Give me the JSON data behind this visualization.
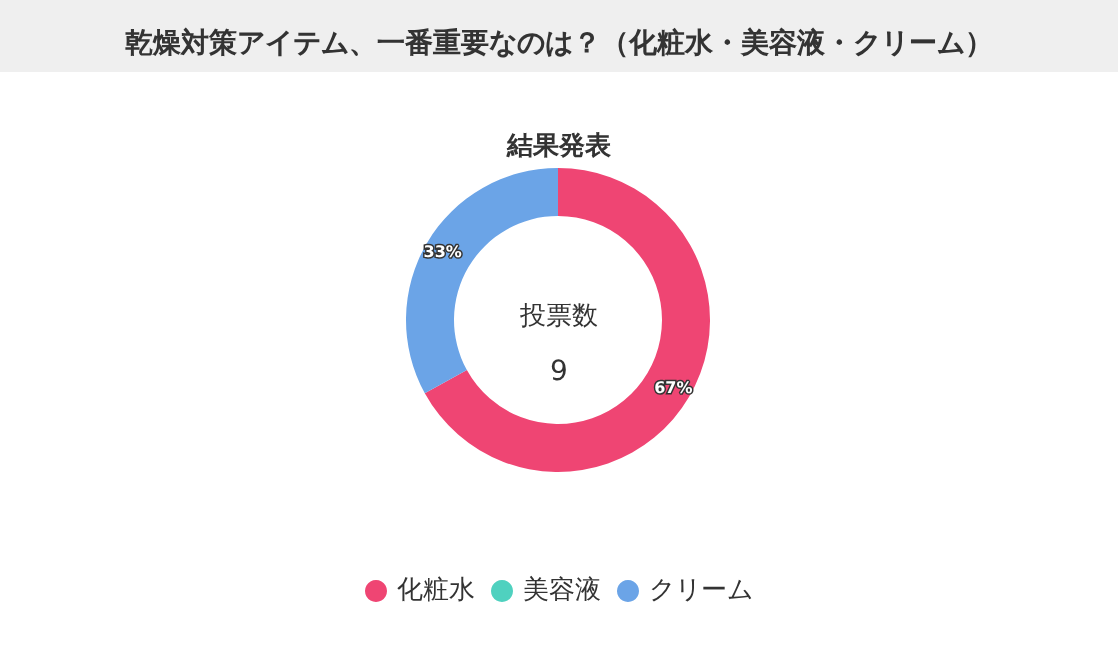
{
  "chart_data": {
    "type": "donut",
    "title": "乾燥対策アイテム、一番重要なのは？（化粧水・美容液・クリーム）",
    "subtitle": "結果発表",
    "categories": [
      "化粧水",
      "美容液",
      "クリーム"
    ],
    "values": [
      67,
      0,
      33
    ],
    "colors": [
      "#ef4573",
      "#4fd1bf",
      "#6ba4e7"
    ],
    "value_labels": [
      "67%",
      null,
      "33%"
    ],
    "annotations": [
      "投票数",
      "9"
    ],
    "legend": "bottom"
  }
}
